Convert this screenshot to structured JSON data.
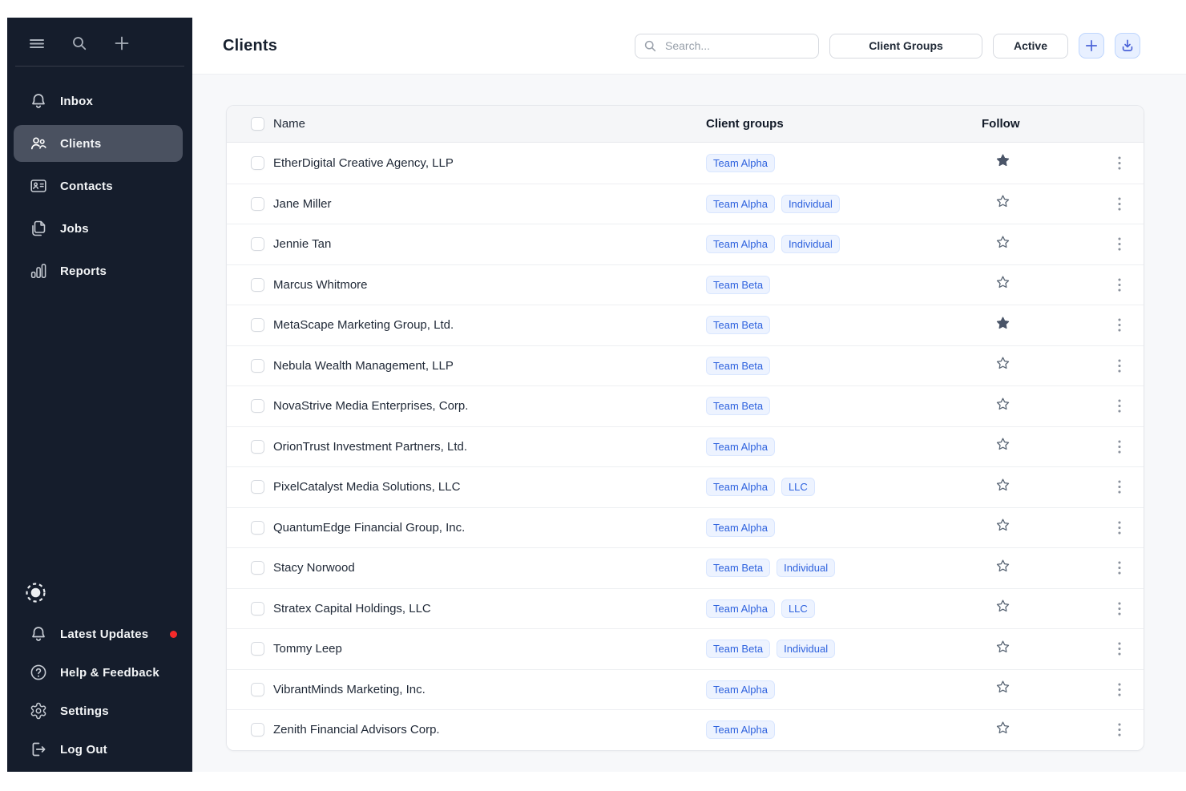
{
  "colors": {
    "sidebar_bg": "#151D2C",
    "sidebar_active_bg": "#4A5160",
    "accent_blue": "#2E62DE",
    "badge_bg": "#EDF3FF",
    "badge_border": "#D9E6FF",
    "icon_button_bg": "#E8F0FF",
    "icon_button_border": "#BFD6FE",
    "icon_button_icon": "#4B63D8",
    "page_bg": "#F7F8FA",
    "header_row_bg": "#F5F6F8",
    "star_filled": "#4A5568",
    "red_dot": "#F42A2A"
  },
  "sidebar": {
    "top_icons": [
      {
        "name": "menu",
        "icon": "hamburger-icon"
      },
      {
        "name": "search",
        "icon": "search-icon"
      },
      {
        "name": "add",
        "icon": "plus-icon"
      }
    ],
    "items": [
      {
        "label": "Inbox",
        "icon": "bell-icon",
        "active": false
      },
      {
        "label": "Clients",
        "icon": "people-icon",
        "active": true
      },
      {
        "label": "Contacts",
        "icon": "contact-card-icon",
        "active": false
      },
      {
        "label": "Jobs",
        "icon": "documents-icon",
        "active": false
      },
      {
        "label": "Reports",
        "icon": "bar-chart-icon",
        "active": false
      }
    ],
    "status_icon": "dashed-circle-icon",
    "bottom_items": [
      {
        "label": "Latest Updates",
        "icon": "bell-icon",
        "has_red_dot": true
      },
      {
        "label": "Help & Feedback",
        "icon": "question-circle-icon",
        "has_red_dot": false
      },
      {
        "label": "Settings",
        "icon": "gear-icon",
        "has_red_dot": false
      },
      {
        "label": "Log Out",
        "icon": "logout-icon",
        "has_red_dot": false
      }
    ]
  },
  "header": {
    "title": "Clients",
    "search_placeholder": "Search...",
    "client_groups_label": "Client Groups",
    "active_filter_label": "Active",
    "icon_buttons": [
      "plus-icon",
      "download-icon"
    ]
  },
  "table": {
    "columns": [
      "Name",
      "Client groups",
      "Follow"
    ],
    "rows": [
      {
        "name": "EtherDigital Creative Agency, LLP",
        "groups": [
          "Team Alpha"
        ],
        "followed": true
      },
      {
        "name": "Jane Miller",
        "groups": [
          "Team Alpha",
          "Individual"
        ],
        "followed": false
      },
      {
        "name": "Jennie Tan",
        "groups": [
          "Team Alpha",
          "Individual"
        ],
        "followed": false
      },
      {
        "name": "Marcus Whitmore",
        "groups": [
          "Team Beta"
        ],
        "followed": false
      },
      {
        "name": "MetaScape Marketing Group, Ltd.",
        "groups": [
          "Team Beta"
        ],
        "followed": true
      },
      {
        "name": "Nebula Wealth Management, LLP",
        "groups": [
          "Team Beta"
        ],
        "followed": false
      },
      {
        "name": "NovaStrive Media Enterprises, Corp.",
        "groups": [
          "Team Beta"
        ],
        "followed": false
      },
      {
        "name": "OrionTrust Investment Partners, Ltd.",
        "groups": [
          "Team Alpha"
        ],
        "followed": false
      },
      {
        "name": "PixelCatalyst Media Solutions, LLC",
        "groups": [
          "Team Alpha",
          "LLC"
        ],
        "followed": false
      },
      {
        "name": "QuantumEdge Financial Group, Inc.",
        "groups": [
          "Team Alpha"
        ],
        "followed": false
      },
      {
        "name": "Stacy Norwood",
        "groups": [
          "Team Beta",
          "Individual"
        ],
        "followed": false
      },
      {
        "name": "Stratex Capital Holdings, LLC",
        "groups": [
          "Team Alpha",
          "LLC"
        ],
        "followed": false
      },
      {
        "name": "Tommy Leep",
        "groups": [
          "Team Beta",
          "Individual"
        ],
        "followed": false
      },
      {
        "name": "VibrantMinds Marketing, Inc.",
        "groups": [
          "Team Alpha"
        ],
        "followed": false
      },
      {
        "name": "Zenith Financial Advisors Corp.",
        "groups": [
          "Team Alpha"
        ],
        "followed": false
      }
    ]
  }
}
